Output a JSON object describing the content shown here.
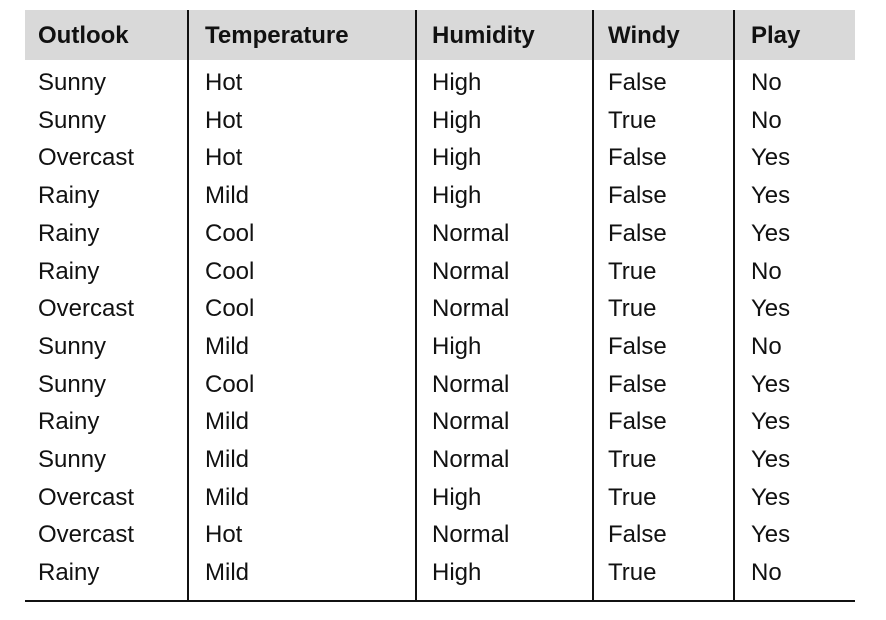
{
  "table": {
    "header": [
      "Outlook",
      "Temperature",
      "Humidity",
      "Windy",
      "Play"
    ],
    "rows": [
      [
        "Sunny",
        "Hot",
        "High",
        "False",
        "No"
      ],
      [
        "Sunny",
        "Hot",
        "High",
        "True",
        "No"
      ],
      [
        "Overcast",
        "Hot",
        "High",
        "False",
        "Yes"
      ],
      [
        "Rainy",
        "Mild",
        "High",
        "False",
        "Yes"
      ],
      [
        "Rainy",
        "Cool",
        "Normal",
        "False",
        "Yes"
      ],
      [
        "Rainy",
        "Cool",
        "Normal",
        "True",
        "No"
      ],
      [
        "Overcast",
        "Cool",
        "Normal",
        "True",
        "Yes"
      ],
      [
        "Sunny",
        "Mild",
        "High",
        "False",
        "No"
      ],
      [
        "Sunny",
        "Cool",
        "Normal",
        "False",
        "Yes"
      ],
      [
        "Rainy",
        "Mild",
        "Normal",
        "False",
        "Yes"
      ],
      [
        "Sunny",
        "Mild",
        "Normal",
        "True",
        "Yes"
      ],
      [
        "Overcast",
        "Mild",
        "High",
        "True",
        "Yes"
      ],
      [
        "Overcast",
        "Hot",
        "Normal",
        "False",
        "Yes"
      ],
      [
        "Rainy",
        "Mild",
        "High",
        "True",
        "No"
      ]
    ]
  }
}
